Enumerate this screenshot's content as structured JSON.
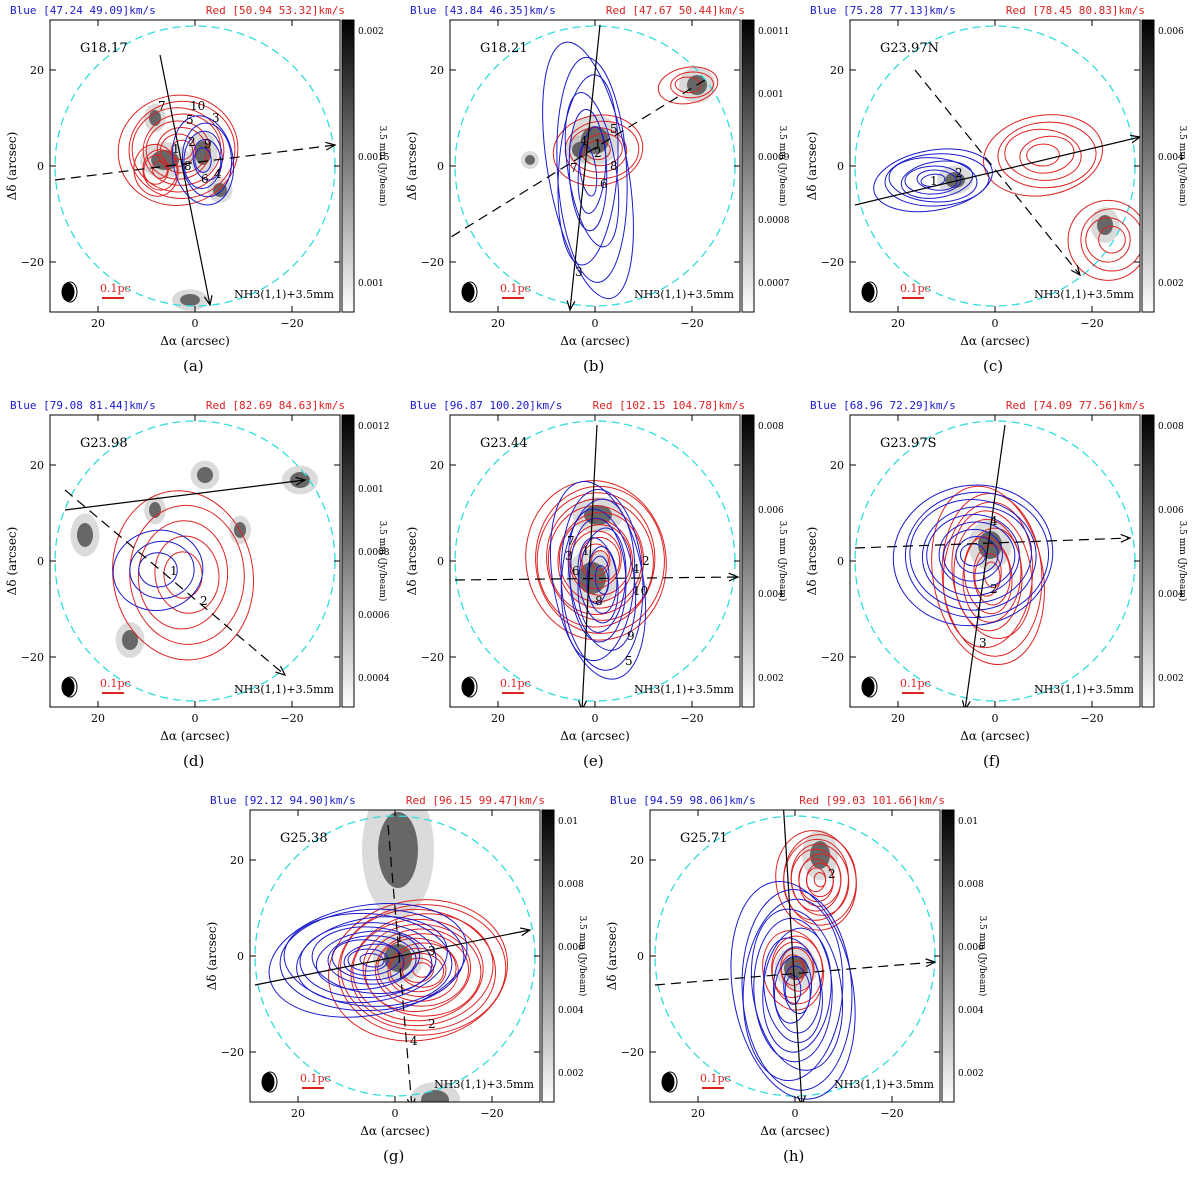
{
  "common": {
    "xlabel": "Δα (arcsec)",
    "ylabel": "Δδ (arcsec)",
    "cbar_label": "3.5 mm (Jy/beam)",
    "scalebar": "0.1pc",
    "tracer": "NH3(1,1)+3.5mm",
    "xticks": [
      "20",
      "0",
      "−20"
    ],
    "yticks": [
      "20",
      "0",
      "−20"
    ]
  },
  "panels": [
    {
      "id": "a",
      "caption": "(a)",
      "name": "G18.17",
      "blue": "Blue [47.24 49.09]km/s",
      "red": "Red [50.94 53.32]km/s",
      "cbar": [
        "0.002",
        "0.0015",
        "0.001"
      ],
      "labels": [
        "7",
        "10",
        "5",
        "3",
        "2",
        "9",
        "1",
        "8",
        "6",
        "4"
      ]
    },
    {
      "id": "b",
      "caption": "(b)",
      "name": "G18.21",
      "blue": "Blue [43.84 46.35]km/s",
      "red": "Red [47.67 50.44]km/s",
      "cbar": [
        "0.0011",
        "0.001",
        "0.0009",
        "0.0008",
        "0.0007"
      ],
      "labels": [
        "4",
        "5",
        "2",
        "1",
        "8",
        "7",
        "6",
        "3"
      ]
    },
    {
      "id": "c",
      "caption": "(c)",
      "name": "G23.97N",
      "blue": "Blue [75.28 77.13]km/s",
      "red": "Red [78.45 80.83]km/s",
      "cbar": [
        "0.006",
        "0.004",
        "0.002"
      ],
      "labels": [
        "1",
        "2"
      ]
    },
    {
      "id": "d",
      "caption": "(d)",
      "name": "G23.98",
      "blue": "Blue [79.08 81.44]km/s",
      "red": "Red [82.69 84.63]km/s",
      "cbar": [
        "0.0012",
        "0.001",
        "0.0008",
        "0.0006",
        "0.0004"
      ],
      "labels": [
        "1",
        "2"
      ]
    },
    {
      "id": "e",
      "caption": "(e)",
      "name": "G23.44",
      "blue": "Blue [96.87 100.20]km/s",
      "red": "Red [102.15 104.78]km/s",
      "cbar": [
        "0.008",
        "0.006",
        "0.004",
        "0.002"
      ],
      "labels": [
        "7",
        "3",
        "1",
        "6",
        "4",
        "2",
        "10",
        "8",
        "9",
        "5"
      ]
    },
    {
      "id": "f",
      "caption": "(f)",
      "name": "G23.97S",
      "blue": "Blue [68.96 72.29]km/s",
      "red": "Red [74.09 77.56]km/s",
      "cbar": [
        "0.008",
        "0.006",
        "0.004",
        "0.002"
      ],
      "labels": [
        "4",
        "2",
        "1",
        "3"
      ]
    },
    {
      "id": "g",
      "caption": "(g)",
      "name": "G25.38",
      "blue": "Blue [92.12 94.90]km/s",
      "red": "Red [96.15 99.47]km/s",
      "cbar": [
        "0.01",
        "0.008",
        "0.006",
        "0.004",
        "0.002"
      ],
      "labels": [
        "3",
        "1",
        "2",
        "4"
      ]
    },
    {
      "id": "h",
      "caption": "(h)",
      "name": "G25.71",
      "blue": "Blue [94.59 98.06]km/s",
      "red": "Red [99.03 101.66]km/s",
      "cbar": [
        "0.01",
        "0.008",
        "0.006",
        "0.004",
        "0.002"
      ],
      "labels": [
        "2"
      ]
    }
  ],
  "colors": {
    "blue": "#1a1acc",
    "red": "#dd2222",
    "circle": "#33dddd"
  }
}
